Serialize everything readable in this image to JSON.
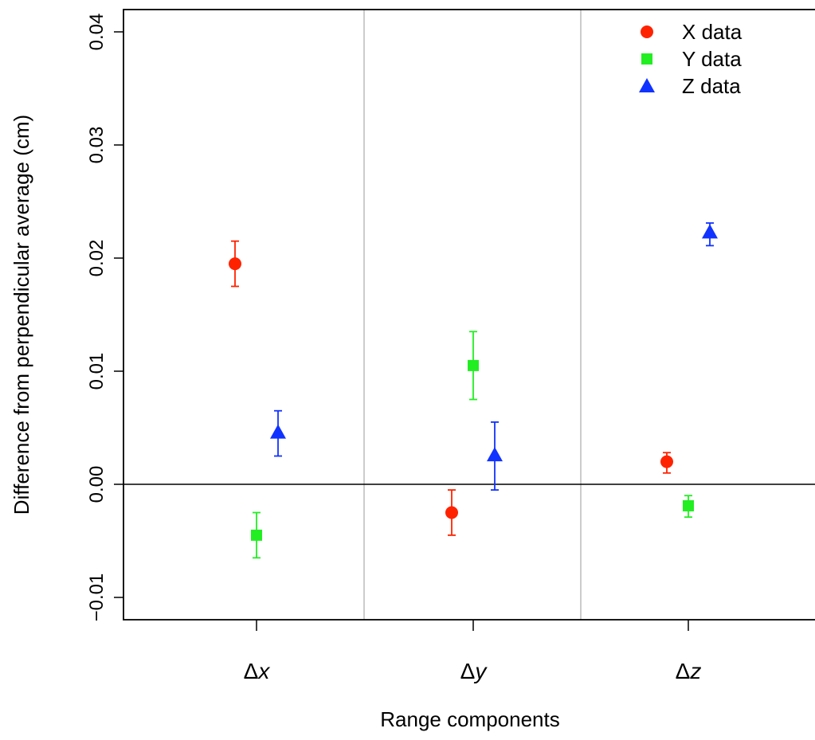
{
  "chart_data": {
    "type": "scatter",
    "xlabel": "Range components",
    "ylabel": "Difference from perpendicular average (cm)",
    "ylim": [
      -0.012,
      0.042
    ],
    "yticks": [
      "-0.01",
      "0.00",
      "0.01",
      "0.02",
      "0.03",
      "0.04"
    ],
    "categories": [
      {
        "delta": "Δ",
        "var": "x"
      },
      {
        "delta": "Δ",
        "var": "y"
      },
      {
        "delta": "Δ",
        "var": "z"
      }
    ],
    "series": [
      {
        "name": "X data",
        "marker": "circle",
        "color": "#ff2200",
        "values": [
          0.0195,
          -0.0025,
          0.002
        ],
        "err_low": [
          0.0175,
          -0.0045,
          0.001
        ],
        "err_high": [
          0.0215,
          -0.0005,
          0.0028
        ]
      },
      {
        "name": "Y data",
        "marker": "square",
        "color": "#22ee22",
        "values": [
          -0.0045,
          0.0105,
          -0.0019
        ],
        "err_low": [
          -0.0065,
          0.0075,
          -0.0029
        ],
        "err_high": [
          -0.0025,
          0.0135,
          -0.001
        ]
      },
      {
        "name": "Z data",
        "marker": "triangle",
        "color": "#1133ff",
        "values": [
          0.0046,
          0.0026,
          0.0223
        ],
        "err_low": [
          0.0025,
          -0.0005,
          0.0211
        ],
        "err_high": [
          0.0065,
          0.0055,
          0.0231
        ]
      }
    ],
    "zero_line": true,
    "category_separators": true,
    "legend": "top-right"
  }
}
